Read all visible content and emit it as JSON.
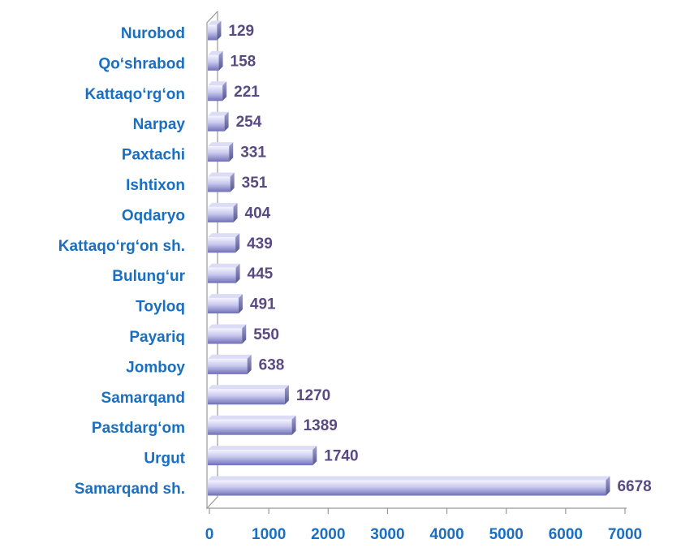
{
  "chart_data": {
    "type": "bar",
    "orientation": "horizontal",
    "categories": [
      "Nurobod",
      "Qo‘shrabod",
      "Kattaqo‘rg‘on",
      "Narpay",
      "Paxtachi",
      "Ishtixon",
      "Oqdaryo",
      "Kattaqo‘rg‘on sh.",
      "Bulung‘ur",
      "Toyloq",
      "Payariq",
      "Jomboy",
      "Samarqand",
      "Pastdarg‘om",
      "Urgut",
      "Samarqand sh."
    ],
    "values": [
      129,
      158,
      221,
      254,
      331,
      351,
      404,
      439,
      445,
      491,
      550,
      638,
      1270,
      1389,
      1740,
      6678
    ],
    "color": "#9a9ad8",
    "xlim": [
      0,
      7000
    ],
    "xticks": [
      0,
      1000,
      2000,
      3000,
      4000,
      5000,
      6000,
      7000
    ],
    "grid": false
  }
}
